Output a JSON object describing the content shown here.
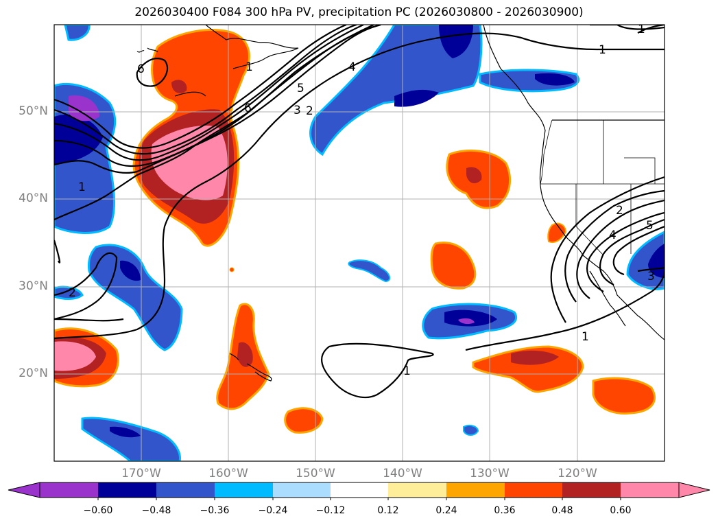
{
  "title": "2026030400 F084 300 hPa PV, precipitation PC (2026030800 - 2026030900)",
  "latitude_labels": [
    "50°N",
    "40°N",
    "30°N",
    "20°N"
  ],
  "longitude_labels": [
    "170°W",
    "160°W",
    "150°W",
    "140°W",
    "130°W",
    "120°W"
  ],
  "contour_labels": [
    "1",
    "2",
    "3",
    "4",
    "5",
    "6",
    "1",
    "2",
    "5",
    "4",
    "3",
    "1",
    "1",
    "2",
    "1",
    "6",
    "1"
  ],
  "colorbar": {
    "ticks": [
      "−0.60",
      "−0.48",
      "−0.36",
      "−0.24",
      "−0.12",
      "0.12",
      "0.24",
      "0.36",
      "0.48",
      "0.60"
    ],
    "colors": [
      "#9933cc",
      "#000099",
      "#3355cc",
      "#00bbff",
      "#aaddff",
      "#ffffff",
      "#ffee99",
      "#ffa500",
      "#ff4500",
      "#b22222",
      "#ff88aa",
      "#ff88aa"
    ]
  },
  "legend_colors": {
    "neg_extreme": "#9933cc",
    "neg_strong": "#000099",
    "neg_mid": "#3355cc",
    "neg_light": "#00bbff",
    "neg_pale": "#aaddff",
    "pos_pale": "#ffee99",
    "pos_light": "#ffa500",
    "pos_mid": "#ff4500",
    "pos_strong": "#b22222",
    "pos_extreme": "#ff88aa"
  }
}
